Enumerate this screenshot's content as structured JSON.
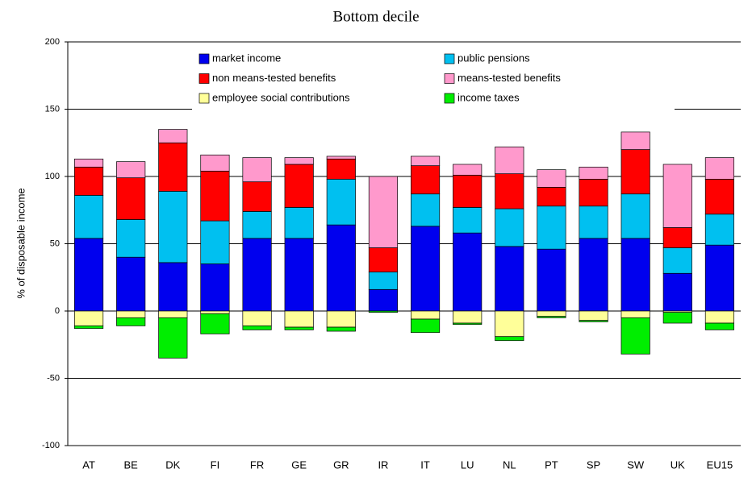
{
  "chart_data": {
    "type": "stacked-bar",
    "title": "Bottom decile",
    "y_label": "% of disposable income",
    "categories": [
      "AT",
      "BE",
      "DK",
      "FI",
      "FR",
      "GE",
      "GR",
      "IR",
      "IT",
      "LU",
      "NL",
      "PT",
      "SP",
      "SW",
      "UK",
      "EU15"
    ],
    "series": [
      {
        "name": "market income",
        "color": "#0000ee",
        "values": [
          54,
          40,
          36,
          35,
          54,
          54,
          64,
          16,
          63,
          58,
          48,
          46,
          54,
          54,
          28,
          49
        ]
      },
      {
        "name": "public pensions",
        "color": "#00c0f0",
        "values": [
          32,
          28,
          53,
          32,
          20,
          23,
          34,
          13,
          24,
          19,
          28,
          32,
          24,
          33,
          19,
          23
        ]
      },
      {
        "name": "non means-tested benefits",
        "color": "#ff0000",
        "values": [
          21,
          31,
          36,
          37,
          22,
          32,
          15,
          18,
          21,
          24,
          26,
          14,
          20,
          33,
          15,
          26
        ]
      },
      {
        "name": "means-tested benefits",
        "color": "#ff99cc",
        "values": [
          6,
          12,
          10,
          12,
          18,
          5,
          2,
          53,
          7,
          8,
          20,
          13,
          9,
          13,
          47,
          16
        ]
      },
      {
        "name": "employee social contributions",
        "color": "#ffff99",
        "values": [
          -11,
          -5,
          -5,
          -2,
          -11,
          -12,
          -12,
          0,
          -6,
          -9,
          -19,
          -4,
          -7,
          -5,
          -1,
          -9
        ]
      },
      {
        "name": "income taxes",
        "color": "#00ee00",
        "values": [
          -2,
          -6,
          -30,
          -15,
          -3,
          -2,
          -3,
          -1,
          -10,
          -1,
          -3,
          -1,
          -1,
          -27,
          -8,
          -5
        ]
      }
    ],
    "ylim": [
      -100,
      200
    ],
    "yticks": [
      -100,
      -50,
      0,
      50,
      100,
      150,
      200
    ],
    "grid": true
  }
}
